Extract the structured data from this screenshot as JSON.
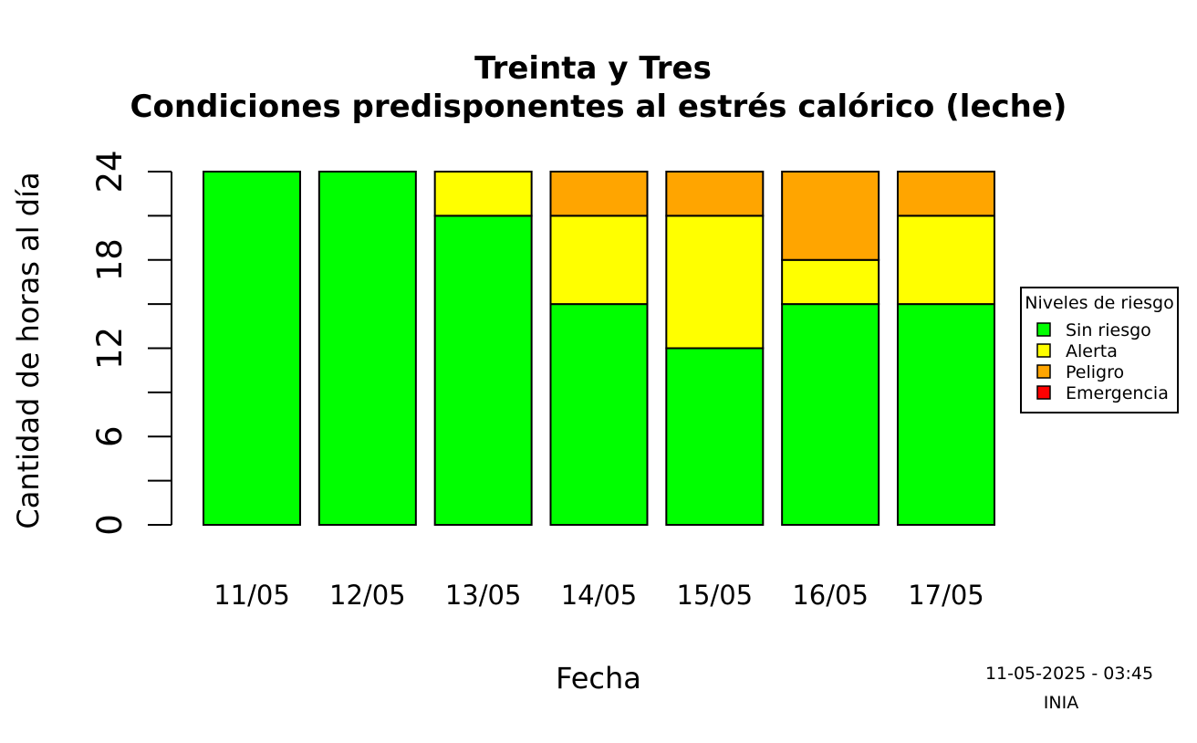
{
  "chart_data": {
    "type": "bar",
    "stacked": true,
    "title": "Treinta y Tres",
    "subtitle": "Condiciones predisponentes al estrés calórico (leche)",
    "xlabel": "Fecha",
    "ylabel": "Cantidad de horas al día",
    "categories": [
      "11/05",
      "12/05",
      "13/05",
      "14/05",
      "15/05",
      "16/05",
      "17/05"
    ],
    "ylim": [
      0,
      24
    ],
    "yticks": [
      0,
      6,
      12,
      18,
      24
    ],
    "grid": false,
    "legend": {
      "title": "Niveles de riesgo",
      "position": "right",
      "entries": [
        "Sin riesgo",
        "Alerta",
        "Peligro",
        "Emergencia"
      ]
    },
    "series": [
      {
        "name": "Sin riesgo",
        "color": "#00ff00",
        "values": [
          24,
          24,
          21,
          15,
          12,
          15,
          15
        ]
      },
      {
        "name": "Alerta",
        "color": "#ffff00",
        "values": [
          0,
          0,
          3,
          6,
          9,
          3,
          6
        ]
      },
      {
        "name": "Peligro",
        "color": "#ffa500",
        "values": [
          0,
          0,
          0,
          3,
          3,
          6,
          3
        ]
      },
      {
        "name": "Emergencia",
        "color": "#ff0000",
        "values": [
          0,
          0,
          0,
          0,
          0,
          0,
          0
        ]
      }
    ]
  },
  "footer": {
    "timestamp": "11-05-2025 - 03:45",
    "source": "INIA"
  }
}
